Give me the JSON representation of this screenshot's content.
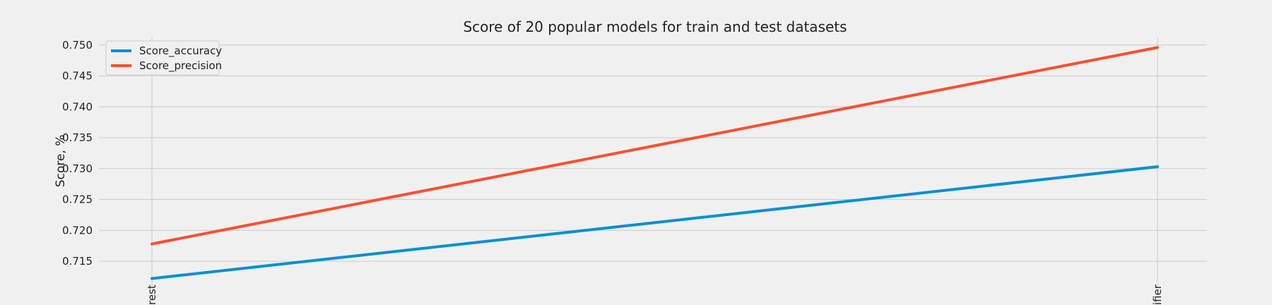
{
  "chart_data": {
    "type": "line",
    "title": "Score of 20 popular models for train and test datasets",
    "xlabel": "",
    "ylabel": "Score, %",
    "categories": [
      "rest",
      "ifier"
    ],
    "series": [
      {
        "name": "Score_accuracy",
        "values": [
          0.7122,
          0.7303
        ],
        "color": "#008fd5"
      },
      {
        "name": "Score_precision",
        "values": [
          0.7178,
          0.7496
        ],
        "color": "#fc4f30"
      }
    ],
    "ylim": [
      0.711,
      0.751
    ],
    "yticks": [
      "0.715",
      "0.720",
      "0.725",
      "0.730",
      "0.735",
      "0.740",
      "0.745",
      "0.750"
    ],
    "grid": true,
    "legend_position": "top-left"
  },
  "colors": {
    "background": "#f0f0f0",
    "grid": "#cbcbcb"
  }
}
